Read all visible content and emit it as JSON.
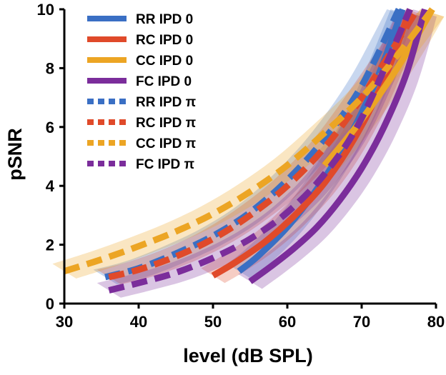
{
  "chart_data": {
    "type": "line",
    "title": "",
    "xlabel": "level (dB SPL)",
    "ylabel": "pSNR",
    "xlim": [
      30,
      80
    ],
    "ylim": [
      0,
      10
    ],
    "xticks": [
      "30",
      "40",
      "50",
      "60",
      "70",
      "80"
    ],
    "yticks": [
      "0",
      "2",
      "4",
      "6",
      "8",
      "10"
    ],
    "grid": false,
    "legend_position": "top-left",
    "series": [
      {
        "name": "RR IPD 0",
        "color": "#3A6FC4",
        "style": "solid",
        "x": [
          53.5,
          56,
          60,
          64,
          68,
          72,
          75.5
        ],
        "y": [
          1.1,
          1.6,
          2.6,
          3.9,
          5.5,
          7.6,
          10
        ]
      },
      {
        "name": "RC IPD 0",
        "color": "#E04A2A",
        "style": "solid",
        "x": [
          50,
          53,
          57,
          61,
          65,
          69,
          73,
          76.5
        ],
        "y": [
          0.95,
          1.4,
          2.1,
          3.0,
          4.1,
          5.6,
          7.6,
          10
        ]
      },
      {
        "name": "CC IPD 0",
        "color": "#ECA524",
        "style": "solid",
        "x": [
          65,
          68,
          71,
          74,
          77,
          79.5
        ],
        "y": [
          4.7,
          5.6,
          6.6,
          7.7,
          8.9,
          10
        ]
      },
      {
        "name": "FC IPD 0",
        "color": "#7B2D9B",
        "style": "solid",
        "x": [
          55,
          58,
          61,
          64,
          67,
          70,
          73,
          76,
          78.5
        ],
        "y": [
          0.75,
          1.3,
          1.9,
          2.6,
          3.5,
          4.6,
          6.0,
          7.8,
          10
        ]
      },
      {
        "name": "RR IPD π",
        "color": "#3A6FC4",
        "style": "dashed",
        "x": [
          35.5,
          40,
          45,
          50,
          55,
          60,
          65,
          70,
          75
        ],
        "y": [
          0.9,
          1.2,
          1.7,
          2.3,
          3.1,
          4.2,
          5.6,
          7.4,
          10
        ]
      },
      {
        "name": "RC IPD π",
        "color": "#E04A2A",
        "style": "dashed",
        "x": [
          36,
          40,
          45,
          50,
          55,
          60,
          65,
          70,
          77.5
        ],
        "y": [
          0.9,
          1.15,
          1.6,
          2.2,
          3.0,
          4.0,
          5.3,
          7.0,
          10
        ]
      },
      {
        "name": "CC IPD π",
        "color": "#ECA524",
        "style": "dashed",
        "x": [
          30,
          35,
          40,
          45,
          50,
          55,
          60,
          65,
          70,
          75,
          79.5
        ],
        "y": [
          1.1,
          1.5,
          1.95,
          2.45,
          3.05,
          3.8,
          4.7,
          5.8,
          7.0,
          8.5,
          10
        ]
      },
      {
        "name": "FC IPD π",
        "color": "#7B2D9B",
        "style": "dashed",
        "x": [
          36,
          40,
          45,
          50,
          55,
          60,
          65,
          70,
          76.5
        ],
        "y": [
          0.45,
          0.7,
          1.05,
          1.55,
          2.2,
          3.1,
          4.4,
          6.3,
          10
        ]
      }
    ]
  }
}
